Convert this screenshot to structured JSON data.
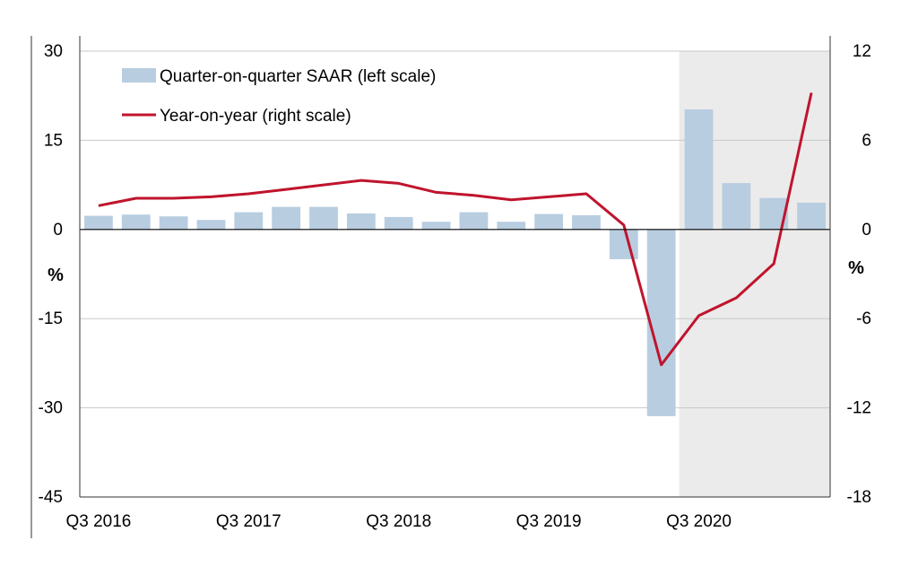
{
  "chart_data": {
    "type": "bar",
    "categories": [
      "Q3 2016",
      "Q4 2016",
      "Q1 2017",
      "Q2 2017",
      "Q3 2017",
      "Q4 2017",
      "Q1 2018",
      "Q2 2018",
      "Q3 2018",
      "Q4 2018",
      "Q1 2019",
      "Q2 2019",
      "Q3 2019",
      "Q4 2019",
      "Q1 2020",
      "Q2 2020",
      "Q3 2020",
      "Q4 2020",
      "Q1 2021",
      "Q2 2021"
    ],
    "x_tick_labels": [
      "Q3 2016",
      "Q3 2017",
      "Q3 2018",
      "Q3 2019",
      "Q3 2020"
    ],
    "series": [
      {
        "name": "Quarter-on-quarter SAAR (left scale)",
        "type": "bar",
        "axis": "left",
        "color": "#b8cde0",
        "values": [
          2.3,
          2.5,
          2.2,
          1.6,
          2.9,
          3.8,
          3.8,
          2.7,
          2.1,
          1.3,
          2.9,
          1.3,
          2.6,
          2.4,
          -5.0,
          -31.4,
          20.2,
          7.8,
          5.3,
          4.5
        ]
      },
      {
        "name": "Year-on-year (right scale)",
        "type": "line",
        "axis": "right",
        "color": "#c0142d",
        "values": [
          1.6,
          2.1,
          2.1,
          2.2,
          2.4,
          2.7,
          3.0,
          3.3,
          3.1,
          2.5,
          2.3,
          2.0,
          2.2,
          2.4,
          0.3,
          -9.1,
          -5.8,
          -4.6,
          -2.3,
          9.2
        ]
      }
    ],
    "left_axis": {
      "label": "%",
      "ylim": [
        -45,
        30
      ],
      "ticks": [
        "30",
        "15",
        "0",
        "-15",
        "-30",
        "-45"
      ]
    },
    "right_axis": {
      "label": "%",
      "ylim": [
        -18,
        12
      ],
      "ticks": [
        "12",
        "6",
        "0",
        "-6",
        "-12",
        "-18"
      ]
    },
    "shaded_region": {
      "from_category": "Q3 2020",
      "to_category": "Q2 2021",
      "color": "#ebebeb"
    },
    "grid": "horizontal",
    "legend_position": "top-left"
  }
}
